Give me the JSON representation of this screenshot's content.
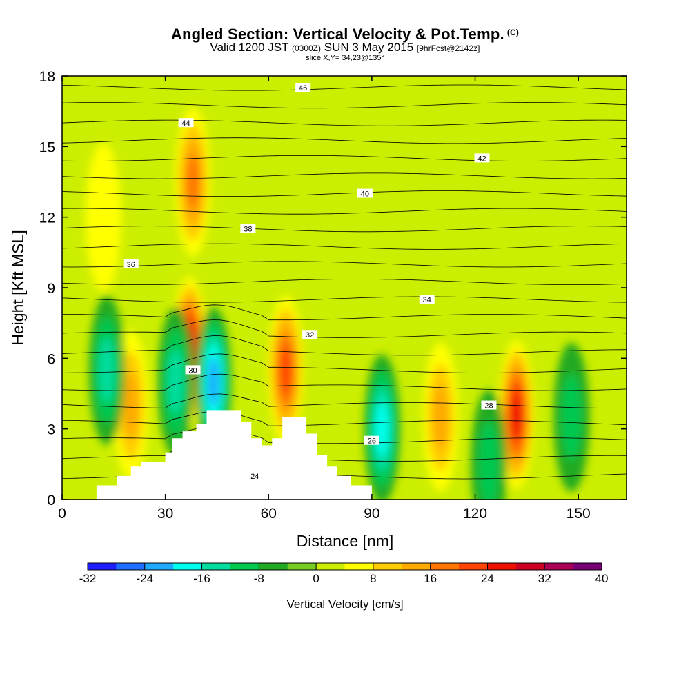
{
  "header": {
    "title": "Angled Section: Vertical Velocity & Pot.Temp.",
    "title_tag": "(C)",
    "valid_prefix": "Valid 1200 JST",
    "valid_zulu": "(0300Z)",
    "valid_date": "SUN 3 May 2015",
    "forecast": "[9hrFcst@2142z]",
    "slice": "slice X,Y= 34,23@135°"
  },
  "chart_data": {
    "type": "heatmap",
    "xlabel": "Distance [nm]",
    "ylabel": "Height [Kft MSL]",
    "xlim": [
      0,
      164
    ],
    "ylim": [
      0,
      18
    ],
    "x_ticks": [
      0,
      30,
      60,
      90,
      120,
      150
    ],
    "y_ticks": [
      0,
      3,
      6,
      9,
      12,
      15,
      18
    ],
    "colorbar": {
      "label": "Vertical Velocity [cm/s]",
      "tick_labels": [
        "-32",
        "-24",
        "-16",
        "-8",
        "0",
        "8",
        "16",
        "24",
        "32",
        "40"
      ],
      "levels": [
        -32,
        -28,
        -24,
        -20,
        -16,
        -12,
        -8,
        -4,
        0,
        4,
        8,
        12,
        16,
        20,
        24,
        28,
        32,
        36,
        40
      ],
      "colors": [
        "#1e1eff",
        "#1e6eff",
        "#1eaaff",
        "#00ffee",
        "#00dd9e",
        "#00c850",
        "#22aa22",
        "#77cc22",
        "#ccee00",
        "#ffff00",
        "#ffcc00",
        "#ffaa00",
        "#ff7700",
        "#ff4400",
        "#ee1100",
        "#cc0022",
        "#aa0055",
        "#770077"
      ]
    },
    "theta_contour_labels": [
      "24",
      "26",
      "28",
      "30",
      "32",
      "34",
      "36",
      "38",
      "40",
      "42",
      "44",
      "46"
    ],
    "vertical_velocity_cells": [
      {
        "x": 37,
        "y": 6.3,
        "value": 30
      },
      {
        "x": 38,
        "y": 13.5,
        "value": 16
      },
      {
        "x": 65,
        "y": 5.5,
        "value": 20
      },
      {
        "x": 132,
        "y": 3.6,
        "value": 26
      },
      {
        "x": 110,
        "y": 3.5,
        "value": 15
      },
      {
        "x": 20,
        "y": 4.0,
        "value": 12
      },
      {
        "x": 12,
        "y": 12.0,
        "value": 6
      },
      {
        "x": 44,
        "y": 5.0,
        "value": -20
      },
      {
        "x": 93,
        "y": 3.0,
        "value": -18
      },
      {
        "x": 33,
        "y": 5.0,
        "value": -14
      },
      {
        "x": 13,
        "y": 5.5,
        "value": -14
      },
      {
        "x": 148,
        "y": 3.5,
        "value": -10
      },
      {
        "x": 124,
        "y": 1.5,
        "value": -8
      }
    ],
    "terrain": [
      [
        10,
        0.6
      ],
      [
        16,
        0.6
      ],
      [
        16,
        1.0
      ],
      [
        20,
        1.0
      ],
      [
        20,
        1.4
      ],
      [
        23,
        1.4
      ],
      [
        23,
        1.6
      ],
      [
        30,
        1.6
      ],
      [
        30,
        2.0
      ],
      [
        32,
        2.0
      ],
      [
        32,
        2.6
      ],
      [
        35,
        2.6
      ],
      [
        35,
        2.9
      ],
      [
        39,
        2.9
      ],
      [
        39,
        3.2
      ],
      [
        42,
        3.2
      ],
      [
        42,
        3.8
      ],
      [
        52,
        3.8
      ],
      [
        52,
        3.3
      ],
      [
        55,
        3.3
      ],
      [
        55,
        2.6
      ],
      [
        58,
        2.6
      ],
      [
        58,
        2.3
      ],
      [
        61,
        2.3
      ],
      [
        61,
        2.6
      ],
      [
        64,
        2.6
      ],
      [
        64,
        3.5
      ],
      [
        71,
        3.5
      ],
      [
        71,
        2.8
      ],
      [
        74,
        2.8
      ],
      [
        74,
        1.9
      ],
      [
        77,
        1.9
      ],
      [
        77,
        1.4
      ],
      [
        80,
        1.4
      ],
      [
        80,
        1.0
      ],
      [
        84,
        1.0
      ],
      [
        84,
        0.6
      ],
      [
        90,
        0.6
      ],
      [
        90,
        0
      ]
    ]
  }
}
